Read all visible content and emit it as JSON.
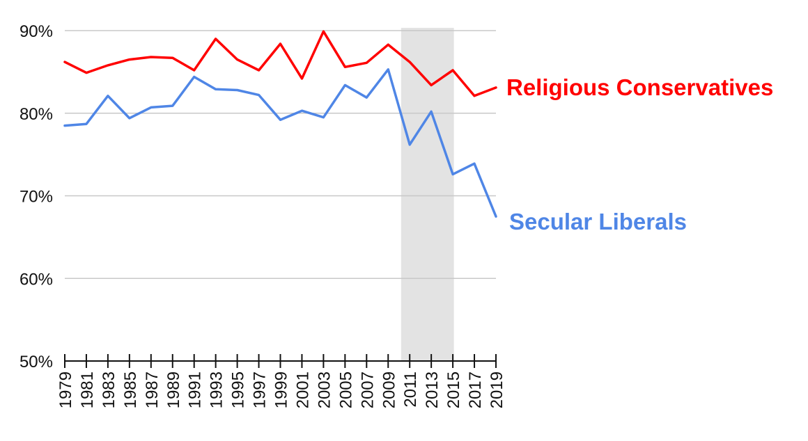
{
  "chart_data": {
    "type": "line",
    "x": [
      1979,
      1981,
      1983,
      1985,
      1987,
      1989,
      1991,
      1993,
      1995,
      1997,
      1999,
      2001,
      2003,
      2005,
      2007,
      2009,
      2011,
      2013,
      2015,
      2017,
      2019
    ],
    "x_tick_labels": [
      "1979",
      "1981",
      "1983",
      "1985",
      "1987",
      "1989",
      "1991",
      "1993",
      "1995",
      "1997",
      "1999",
      "2001",
      "2003",
      "2005",
      "2007",
      "2009",
      "2011",
      "2013",
      "2015",
      "2017",
      "2019"
    ],
    "y_ticks": [
      50,
      60,
      70,
      80,
      90
    ],
    "y_tick_labels": [
      "50%",
      "60%",
      "70%",
      "80%",
      "90%"
    ],
    "ylim": [
      50,
      90
    ],
    "xlim": [
      1979,
      2019
    ],
    "grid": "horizontal",
    "highlight_band": {
      "x_start": 2010.2,
      "x_end": 2015.1,
      "color": "#e3e3e3"
    },
    "series": [
      {
        "name": "Religious Conservatives",
        "color": "#ff0000",
        "values": [
          86.2,
          84.9,
          85.8,
          86.5,
          86.8,
          86.7,
          85.2,
          89.0,
          86.5,
          85.2,
          88.4,
          84.2,
          89.9,
          85.6,
          86.1,
          88.3,
          86.2,
          83.4,
          85.2,
          82.1,
          83.1
        ]
      },
      {
        "name": "Secular Liberals",
        "color": "#4f86e6",
        "values": [
          78.5,
          78.7,
          82.1,
          79.4,
          80.7,
          80.9,
          84.4,
          82.9,
          82.8,
          82.2,
          79.2,
          80.3,
          79.5,
          83.4,
          81.9,
          85.3,
          76.2,
          80.2,
          72.6,
          73.9,
          67.5
        ]
      }
    ]
  }
}
